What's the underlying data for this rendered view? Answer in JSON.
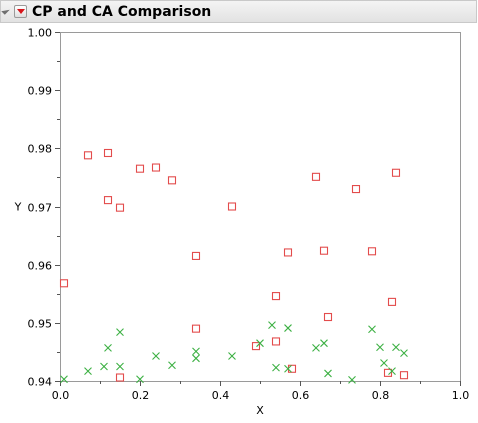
{
  "panel": {
    "title": "CP and CA Comparison"
  },
  "icons": {
    "disclosure": "disclosure-triangle-icon",
    "menu": "red-triangle-menu-icon"
  },
  "colors": {
    "cp": "#e34c4c",
    "ca": "#3cb043",
    "frame": "#9a9a9a",
    "header_bg": "#e8e8e8"
  },
  "chart_data": {
    "type": "scatter",
    "xlabel": "X",
    "ylabel": "Y",
    "xlim": [
      0.0,
      1.0
    ],
    "ylim": [
      0.94,
      1.0
    ],
    "xticks": [
      "0.0",
      "0.2",
      "0.4",
      "0.6",
      "0.8",
      "1.0"
    ],
    "yticks": [
      "0.94",
      "0.95",
      "0.96",
      "0.97",
      "0.98",
      "0.99",
      "1.00"
    ],
    "grid": false,
    "series": [
      {
        "marker": "square",
        "color": "#e34c4c",
        "x": [
          0.01,
          0.07,
          0.12,
          0.12,
          0.15,
          0.15,
          0.2,
          0.24,
          0.28,
          0.34,
          0.34,
          0.43,
          0.49,
          0.54,
          0.54,
          0.57,
          0.58,
          0.64,
          0.66,
          0.67,
          0.74,
          0.78,
          0.82,
          0.83,
          0.84,
          0.86
        ],
        "y": [
          0.9568,
          0.9788,
          0.9792,
          0.9711,
          0.9698,
          0.9406,
          0.9765,
          0.9767,
          0.9745,
          0.9615,
          0.949,
          0.97,
          0.946,
          0.9546,
          0.9468,
          0.9621,
          0.9421,
          0.9751,
          0.9624,
          0.951,
          0.973,
          0.9623,
          0.9414,
          0.9536,
          0.9758,
          0.941
        ]
      },
      {
        "marker": "x",
        "color": "#3cb043",
        "x": [
          0.01,
          0.07,
          0.11,
          0.12,
          0.15,
          0.15,
          0.2,
          0.24,
          0.28,
          0.34,
          0.34,
          0.43,
          0.5,
          0.53,
          0.54,
          0.57,
          0.57,
          0.64,
          0.66,
          0.67,
          0.73,
          0.78,
          0.8,
          0.81,
          0.83,
          0.84,
          0.86
        ],
        "y": [
          0.9403,
          0.9417,
          0.9425,
          0.9457,
          0.9484,
          0.9425,
          0.9403,
          0.9443,
          0.9427,
          0.9439,
          0.9451,
          0.9443,
          0.9465,
          0.9496,
          0.9423,
          0.9491,
          0.9421,
          0.9457,
          0.9465,
          0.9413,
          0.9402,
          0.9489,
          0.9458,
          0.9431,
          0.9417,
          0.9458,
          0.9448
        ]
      }
    ]
  }
}
